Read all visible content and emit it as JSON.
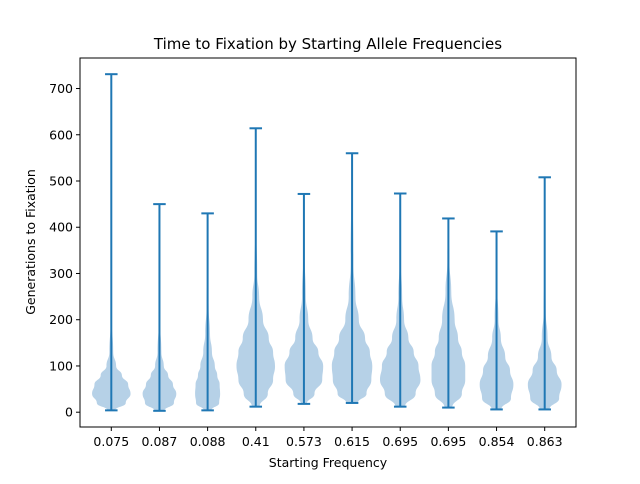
{
  "chart_data": {
    "type": "violin",
    "title": "Time to Fixation by Starting Allele Frequencies",
    "xlabel": "Starting Frequency",
    "ylabel": "Generations to Fixation",
    "categories": [
      "0.075",
      "0.087",
      "0.088",
      "0.41",
      "0.573",
      "0.615",
      "0.695",
      "0.695",
      "0.854",
      "0.863"
    ],
    "ylim": [
      -32,
      766
    ],
    "yticks": [
      0,
      100,
      200,
      300,
      400,
      500,
      600,
      700
    ],
    "grid": false,
    "colors": {
      "body": "#a9c9e3",
      "line": "#1f77b4"
    },
    "violins": [
      {
        "min": 4,
        "max": 731,
        "profile": [
          [
            4,
            8
          ],
          [
            20,
            30
          ],
          [
            40,
            40
          ],
          [
            60,
            35
          ],
          [
            80,
            22
          ],
          [
            100,
            10
          ],
          [
            130,
            4
          ],
          [
            200,
            1
          ],
          [
            731,
            0
          ]
        ]
      },
      {
        "min": 3,
        "max": 450,
        "profile": [
          [
            3,
            10
          ],
          [
            20,
            30
          ],
          [
            40,
            35
          ],
          [
            60,
            28
          ],
          [
            80,
            18
          ],
          [
            100,
            9
          ],
          [
            130,
            4
          ],
          [
            200,
            1
          ],
          [
            450,
            0
          ]
        ]
      },
      {
        "min": 4,
        "max": 430,
        "profile": [
          [
            4,
            8
          ],
          [
            20,
            24
          ],
          [
            40,
            26
          ],
          [
            60,
            25
          ],
          [
            80,
            20
          ],
          [
            100,
            15
          ],
          [
            130,
            9
          ],
          [
            170,
            5
          ],
          [
            230,
            2
          ],
          [
            300,
            1
          ],
          [
            430,
            0
          ]
        ]
      },
      {
        "min": 12,
        "max": 614,
        "profile": [
          [
            12,
            8
          ],
          [
            40,
            25
          ],
          [
            70,
            36
          ],
          [
            100,
            40
          ],
          [
            130,
            36
          ],
          [
            160,
            27
          ],
          [
            200,
            15
          ],
          [
            250,
            7
          ],
          [
            300,
            3
          ],
          [
            400,
            1
          ],
          [
            614,
            0
          ]
        ]
      },
      {
        "min": 18,
        "max": 472,
        "profile": [
          [
            18,
            6
          ],
          [
            40,
            22
          ],
          [
            70,
            38
          ],
          [
            100,
            40
          ],
          [
            130,
            30
          ],
          [
            160,
            18
          ],
          [
            200,
            9
          ],
          [
            250,
            4
          ],
          [
            350,
            1
          ],
          [
            472,
            0
          ]
        ]
      },
      {
        "min": 20,
        "max": 560,
        "profile": [
          [
            20,
            12
          ],
          [
            40,
            30
          ],
          [
            70,
            40
          ],
          [
            100,
            42
          ],
          [
            130,
            37
          ],
          [
            160,
            27
          ],
          [
            200,
            14
          ],
          [
            250,
            7
          ],
          [
            320,
            3
          ],
          [
            560,
            0
          ]
        ]
      },
      {
        "min": 12,
        "max": 473,
        "profile": [
          [
            12,
            10
          ],
          [
            40,
            32
          ],
          [
            70,
            42
          ],
          [
            100,
            38
          ],
          [
            130,
            28
          ],
          [
            160,
            17
          ],
          [
            200,
            8
          ],
          [
            250,
            4
          ],
          [
            330,
            1
          ],
          [
            473,
            0
          ]
        ]
      },
      {
        "min": 10,
        "max": 419,
        "profile": [
          [
            10,
            8
          ],
          [
            40,
            28
          ],
          [
            70,
            35
          ],
          [
            100,
            35
          ],
          [
            130,
            28
          ],
          [
            160,
            20
          ],
          [
            200,
            13
          ],
          [
            260,
            6
          ],
          [
            330,
            2
          ],
          [
            419,
            0
          ]
        ]
      },
      {
        "min": 6,
        "max": 391,
        "profile": [
          [
            6,
            10
          ],
          [
            30,
            30
          ],
          [
            60,
            35
          ],
          [
            90,
            28
          ],
          [
            120,
            18
          ],
          [
            160,
            9
          ],
          [
            200,
            4
          ],
          [
            280,
            1
          ],
          [
            391,
            0
          ]
        ]
      },
      {
        "min": 6,
        "max": 508,
        "profile": [
          [
            6,
            10
          ],
          [
            30,
            30
          ],
          [
            60,
            35
          ],
          [
            90,
            25
          ],
          [
            120,
            14
          ],
          [
            160,
            6
          ],
          [
            220,
            2
          ],
          [
            300,
            1
          ],
          [
            508,
            0
          ]
        ]
      }
    ]
  }
}
